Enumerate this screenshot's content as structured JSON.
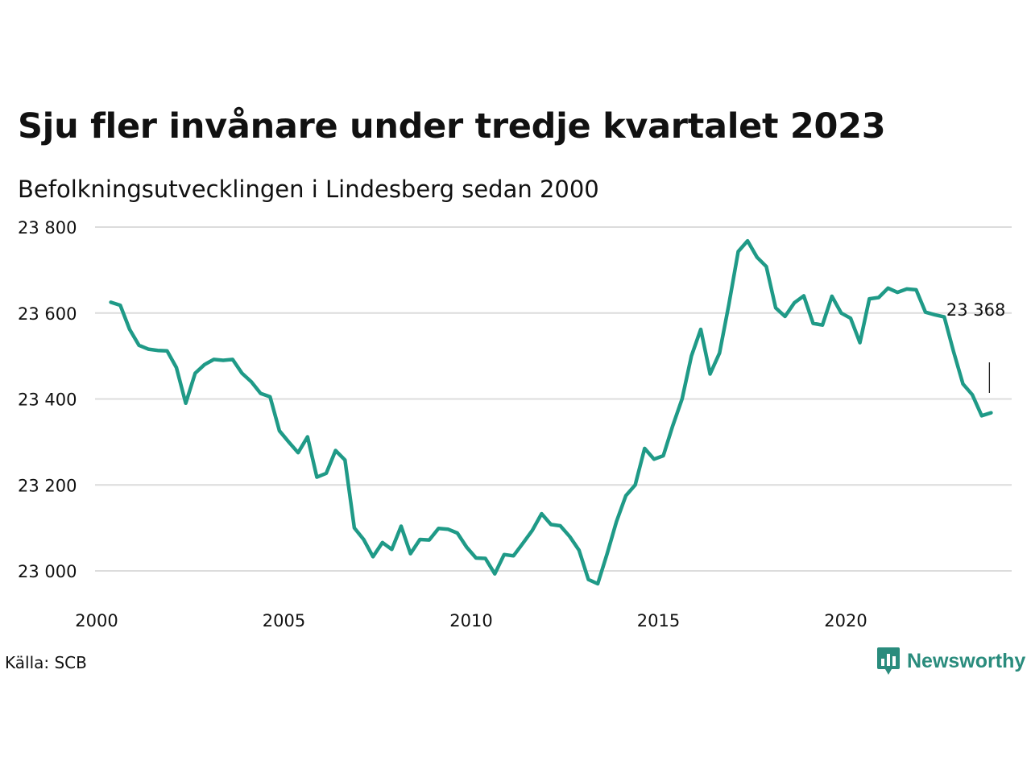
{
  "title": "Sju fler invånare under tredje kvartalet 2023",
  "subtitle": "Befolkningsutvecklingen i Lindesberg sedan 2000",
  "source": "Källa: SCB",
  "brand": {
    "name": "Newsworthy",
    "color": "#2a8c7d"
  },
  "chart_data": {
    "type": "line",
    "x_ticks": [
      "2000",
      "2005",
      "2010",
      "2015",
      "2020"
    ],
    "y_ticks": [
      "23 000",
      "23 200",
      "23 400",
      "23 600",
      "23 800"
    ],
    "ylim": [
      22930,
      23800
    ],
    "xlim": [
      2000,
      2024.9
    ],
    "line_color": "#1f9a87",
    "grid": true,
    "annotation": {
      "label": "23 368",
      "value": 23368
    },
    "series": [
      {
        "x": [
          2000.25,
          2000.5,
          2000.75,
          2001,
          2001.25,
          2001.5,
          2001.75,
          2002,
          2002.25,
          2002.5,
          2002.75,
          2003,
          2003.25,
          2003.5,
          2003.75,
          2004,
          2004.25,
          2004.5,
          2004.75,
          2005,
          2005.25,
          2005.5,
          2005.75,
          2006,
          2006.25,
          2006.5,
          2006.75,
          2007,
          2007.25,
          2007.5,
          2007.75,
          2008,
          2008.25,
          2008.5,
          2008.75,
          2009,
          2009.25,
          2009.5,
          2009.75,
          2010,
          2010.25,
          2010.5,
          2010.75,
          2011,
          2011.25,
          2011.5,
          2011.75,
          2012,
          2012.25,
          2012.5,
          2012.75,
          2013,
          2013.25,
          2013.5,
          2013.75,
          2014,
          2014.25,
          2014.5,
          2014.75,
          2015,
          2015.25,
          2015.5,
          2015.75,
          2016,
          2016.25,
          2016.5,
          2016.75,
          2017,
          2017.25,
          2017.5,
          2017.75,
          2018,
          2018.25,
          2018.5,
          2018.75,
          2019,
          2019.25,
          2019.5,
          2019.75,
          2020,
          2020.25,
          2020.5,
          2020.75,
          2021,
          2021.25,
          2021.5,
          2021.75,
          2022,
          2022.25,
          2022.5,
          2022.75,
          2023,
          2023.25,
          2023.5,
          2023.75
        ],
        "values": [
          23625,
          23618,
          23562,
          23525,
          23516,
          23513,
          23512,
          23473,
          23390,
          23460,
          23480,
          23492,
          23490,
          23492,
          23460,
          23440,
          23413,
          23405,
          23326,
          23300,
          23275,
          23312,
          23218,
          23227,
          23280,
          23258,
          23100,
          23073,
          23033,
          23066,
          23050,
          23104,
          23040,
          23073,
          23072,
          23099,
          23097,
          23088,
          23055,
          23030,
          23029,
          22993,
          23038,
          23035,
          23064,
          23094,
          23133,
          23108,
          23105,
          23080,
          23048,
          22980,
          22970,
          23040,
          23115,
          23175,
          23200,
          23285,
          23260,
          23268,
          23337,
          23400,
          23500,
          23562,
          23458,
          23507,
          23620,
          23743,
          23768,
          23730,
          23708,
          23612,
          23592,
          23624,
          23640,
          23576,
          23572,
          23639,
          23600,
          23588,
          23531,
          23633,
          23636,
          23658,
          23648,
          23656,
          23654,
          23602,
          23596,
          23591,
          23510,
          23435,
          23410,
          23361,
          23368
        ]
      }
    ]
  }
}
